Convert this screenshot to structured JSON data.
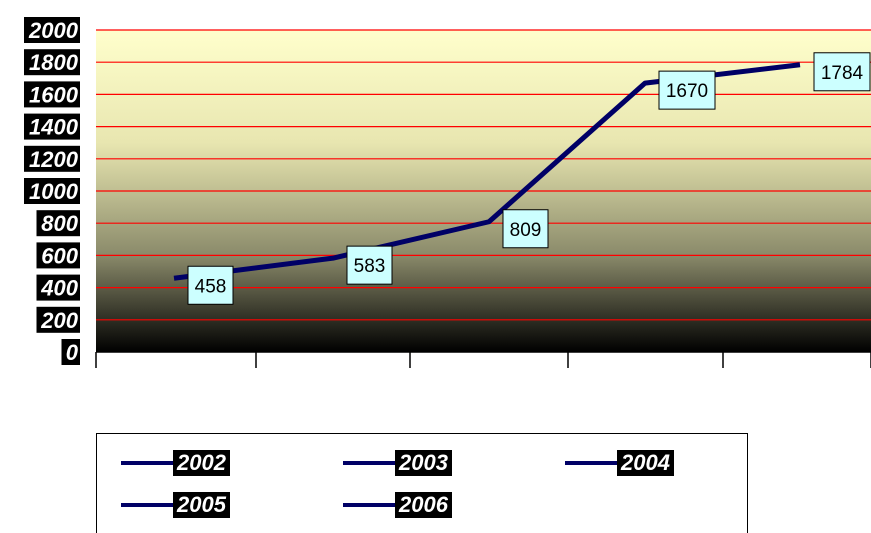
{
  "chart_data": {
    "type": "line",
    "categories": [
      "2002",
      "2003",
      "2004",
      "2005",
      "2006"
    ],
    "series": [
      {
        "values": [
          458,
          583,
          809,
          1670,
          1784
        ]
      }
    ],
    "data_labels": [
      "458",
      "583",
      "809",
      "1670",
      "1784"
    ],
    "yticks": [
      "0",
      "200",
      "400",
      "600",
      "800",
      "1000",
      "1200",
      "1400",
      "1600",
      "1800",
      "2000"
    ],
    "ylim": [
      0,
      2000
    ],
    "grid": true,
    "legend_position": "bottom",
    "line_color": "#000066",
    "gridline_color": "#ff0000",
    "label_box_color": "#ccffff",
    "plot_gradient_top": "#ffffcc",
    "plot_gradient_bottom": "#000000"
  },
  "legend": {
    "items": [
      "2002",
      "2003",
      "2004",
      "2005",
      "2006"
    ]
  }
}
